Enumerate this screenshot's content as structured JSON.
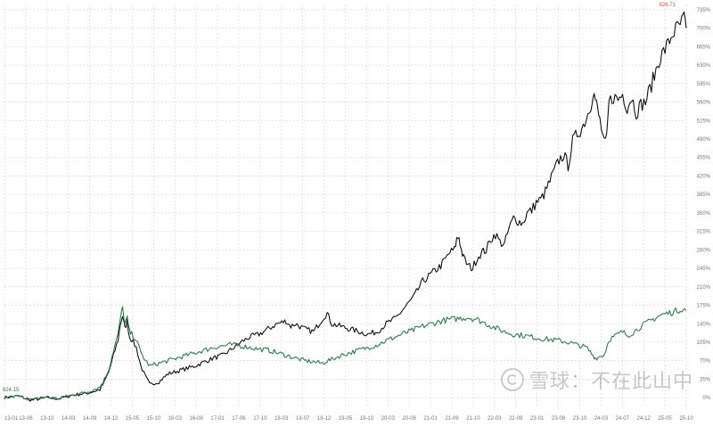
{
  "watermark": {
    "text": "雪球：不在此山中"
  },
  "chart_data": {
    "type": "line",
    "x_ticks": [
      "13-01",
      "13-06",
      "13-10",
      "14-03",
      "14-09",
      "14-12",
      "15-05",
      "15-10",
      "16-03",
      "16-08",
      "17-01",
      "17-06",
      "17-10",
      "18-03",
      "18-07",
      "18-12",
      "19-05",
      "19-10",
      "20-03",
      "20-08",
      "21-01",
      "21-06",
      "21-10",
      "22-03",
      "22-08",
      "23-01",
      "23-06",
      "23-10",
      "24-03",
      "24-07",
      "24-12",
      "25-05",
      "25-10"
    ],
    "y_ticks": [
      "0%",
      "35%",
      "70%",
      "105%",
      "140%",
      "175%",
      "210%",
      "245%",
      "280%",
      "315%",
      "350%",
      "385%",
      "420%",
      "455%",
      "490%",
      "525%",
      "560%",
      "595%",
      "630%",
      "665%",
      "700%",
      "735%"
    ],
    "ylim": [
      -20,
      745
    ],
    "grid": true,
    "annotations": {
      "max_label": "826.71",
      "min_label": "824.15"
    },
    "series": [
      {
        "color": "#111111",
        "points": [
          [
            0,
            0
          ],
          [
            3,
            3
          ],
          [
            6,
            -5
          ],
          [
            9,
            0
          ],
          [
            12,
            -2
          ],
          [
            15,
            5
          ],
          [
            18,
            8
          ],
          [
            21,
            15
          ],
          [
            22,
            30
          ],
          [
            23,
            50
          ],
          [
            24,
            80
          ],
          [
            25,
            110
          ],
          [
            25.5,
            140
          ],
          [
            26,
            155
          ],
          [
            26.5,
            130
          ],
          [
            27,
            145
          ],
          [
            27.5,
            115
          ],
          [
            28,
            110
          ],
          [
            29,
            95
          ],
          [
            30,
            60
          ],
          [
            31,
            40
          ],
          [
            32,
            25
          ],
          [
            34,
            30
          ],
          [
            36,
            45
          ],
          [
            38,
            50
          ],
          [
            40,
            55
          ],
          [
            42,
            60
          ],
          [
            44,
            68
          ],
          [
            46,
            75
          ],
          [
            48,
            80
          ],
          [
            50,
            92
          ],
          [
            52,
            105
          ],
          [
            54,
            115
          ],
          [
            56,
            120
          ],
          [
            58,
            130
          ],
          [
            60,
            140
          ],
          [
            62,
            145
          ],
          [
            63,
            135
          ],
          [
            64,
            140
          ],
          [
            66,
            130
          ],
          [
            68,
            125
          ],
          [
            70,
            150
          ],
          [
            71,
            160
          ],
          [
            72,
            140
          ],
          [
            74,
            135
          ],
          [
            76,
            130
          ],
          [
            78,
            125
          ],
          [
            80,
            120
          ],
          [
            82,
            125
          ],
          [
            84,
            140
          ],
          [
            86,
            150
          ],
          [
            88,
            170
          ],
          [
            90,
            190
          ],
          [
            92,
            220
          ],
          [
            94,
            235
          ],
          [
            96,
            250
          ],
          [
            98,
            275
          ],
          [
            99,
            280
          ],
          [
            99.5,
            300
          ],
          [
            100,
            305
          ],
          [
            100.5,
            280
          ],
          [
            101,
            265
          ],
          [
            102,
            250
          ],
          [
            103,
            245
          ],
          [
            104,
            265
          ],
          [
            105,
            275
          ],
          [
            106,
            280
          ],
          [
            107,
            300
          ],
          [
            108,
            310
          ],
          [
            109,
            295
          ],
          [
            110,
            290
          ],
          [
            111,
            320
          ],
          [
            112,
            340
          ],
          [
            113,
            335
          ],
          [
            114,
            330
          ],
          [
            115,
            350
          ],
          [
            116,
            355
          ],
          [
            117,
            370
          ],
          [
            118,
            375
          ],
          [
            119,
            390
          ],
          [
            120,
            410
          ],
          [
            121,
            430
          ],
          [
            122,
            450
          ],
          [
            123,
            460
          ],
          [
            124,
            440
          ],
          [
            125,
            485
          ],
          [
            126,
            500
          ],
          [
            127,
            510
          ],
          [
            128,
            530
          ],
          [
            129,
            555
          ],
          [
            129.5,
            580
          ],
          [
            130,
            565
          ],
          [
            130.5,
            545
          ],
          [
            131,
            525
          ],
          [
            132,
            480
          ],
          [
            132.5,
            490
          ],
          [
            133,
            560
          ],
          [
            134,
            570
          ],
          [
            135,
            565
          ],
          [
            136,
            575
          ],
          [
            137,
            550
          ],
          [
            138,
            570
          ],
          [
            139,
            540
          ],
          [
            140,
            555
          ],
          [
            141,
            560
          ],
          [
            142,
            585
          ],
          [
            143,
            610
          ],
          [
            144,
            640
          ],
          [
            145,
            655
          ],
          [
            146,
            670
          ],
          [
            147,
            690
          ],
          [
            148,
            700
          ],
          [
            149,
            710
          ],
          [
            149.5,
            720
          ],
          [
            150,
            700
          ]
        ]
      },
      {
        "color": "#2e7d4f",
        "points": [
          [
            0,
            0
          ],
          [
            3,
            3
          ],
          [
            6,
            -4
          ],
          [
            9,
            0
          ],
          [
            12,
            -2
          ],
          [
            15,
            5
          ],
          [
            18,
            10
          ],
          [
            21,
            20
          ],
          [
            22,
            35
          ],
          [
            23,
            55
          ],
          [
            24,
            90
          ],
          [
            25,
            120
          ],
          [
            25.5,
            150
          ],
          [
            26,
            170
          ],
          [
            26.5,
            140
          ],
          [
            27,
            150
          ],
          [
            27.5,
            125
          ],
          [
            28,
            120
          ],
          [
            29,
            110
          ],
          [
            30,
            85
          ],
          [
            31,
            70
          ],
          [
            32,
            60
          ],
          [
            34,
            65
          ],
          [
            36,
            70
          ],
          [
            38,
            75
          ],
          [
            40,
            80
          ],
          [
            42,
            85
          ],
          [
            44,
            90
          ],
          [
            46,
            95
          ],
          [
            48,
            98
          ],
          [
            50,
            100
          ],
          [
            52,
            98
          ],
          [
            54,
            95
          ],
          [
            56,
            92
          ],
          [
            58,
            90
          ],
          [
            60,
            85
          ],
          [
            62,
            80
          ],
          [
            64,
            75
          ],
          [
            66,
            70
          ],
          [
            68,
            68
          ],
          [
            70,
            65
          ],
          [
            71,
            70
          ],
          [
            72,
            72
          ],
          [
            74,
            80
          ],
          [
            76,
            85
          ],
          [
            78,
            90
          ],
          [
            80,
            95
          ],
          [
            82,
            100
          ],
          [
            84,
            108
          ],
          [
            86,
            115
          ],
          [
            88,
            122
          ],
          [
            90,
            128
          ],
          [
            92,
            135
          ],
          [
            94,
            140
          ],
          [
            96,
            145
          ],
          [
            98,
            148
          ],
          [
            100,
            150
          ],
          [
            102,
            152
          ],
          [
            104,
            148
          ],
          [
            106,
            140
          ],
          [
            108,
            132
          ],
          [
            110,
            125
          ],
          [
            112,
            120
          ],
          [
            114,
            118
          ],
          [
            116,
            115
          ],
          [
            118,
            112
          ],
          [
            120,
            110
          ],
          [
            122,
            108
          ],
          [
            124,
            105
          ],
          [
            126,
            100
          ],
          [
            128,
            95
          ],
          [
            129.5,
            80
          ],
          [
            130,
            75
          ],
          [
            131,
            78
          ],
          [
            132,
            82
          ],
          [
            133,
            110
          ],
          [
            134,
            115
          ],
          [
            135,
            120
          ],
          [
            136,
            125
          ],
          [
            137,
            118
          ],
          [
            138,
            122
          ],
          [
            139,
            128
          ],
          [
            140,
            135
          ],
          [
            141,
            140
          ],
          [
            142,
            145
          ],
          [
            143,
            150
          ],
          [
            144,
            155
          ],
          [
            145,
            158
          ],
          [
            146,
            160
          ],
          [
            147,
            162
          ],
          [
            148,
            165
          ],
          [
            149,
            168
          ],
          [
            150,
            165
          ]
        ]
      }
    ]
  }
}
